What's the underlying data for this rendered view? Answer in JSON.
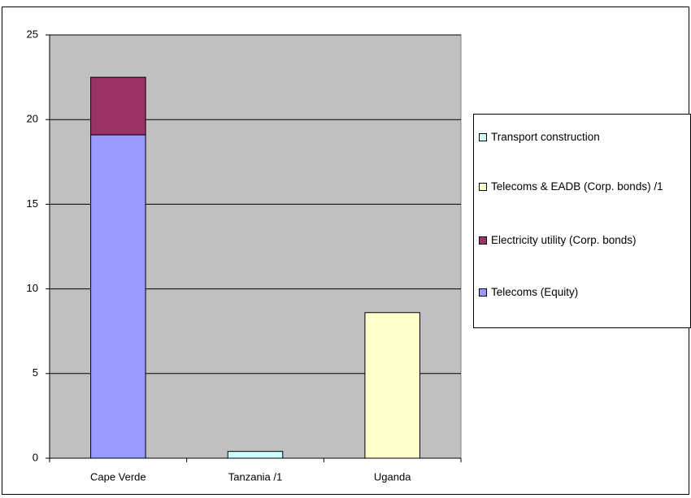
{
  "chart_data": {
    "type": "bar",
    "stacked": true,
    "categories": [
      "Cape Verde",
      "Tanzania /1",
      "Uganda"
    ],
    "series": [
      {
        "name": "Telecoms (Equity)",
        "color": "#9999ff",
        "values": [
          19.1,
          null,
          null
        ]
      },
      {
        "name": "Electricity utility (Corp. bonds)",
        "color": "#993366",
        "values": [
          3.4,
          null,
          null
        ]
      },
      {
        "name": "Telecoms & EADB (Corp. bonds) /1",
        "color": "#ffffcc",
        "values": [
          null,
          null,
          8.6
        ]
      },
      {
        "name": "Transport construction",
        "color": "#ccffff",
        "values": [
          null,
          0.4,
          null
        ]
      }
    ],
    "ylim": [
      0,
      25
    ],
    "yticks": [
      0,
      5,
      10,
      15,
      20,
      25
    ],
    "grid": true,
    "plot_background": "#c0c0c0",
    "legend": "right"
  }
}
